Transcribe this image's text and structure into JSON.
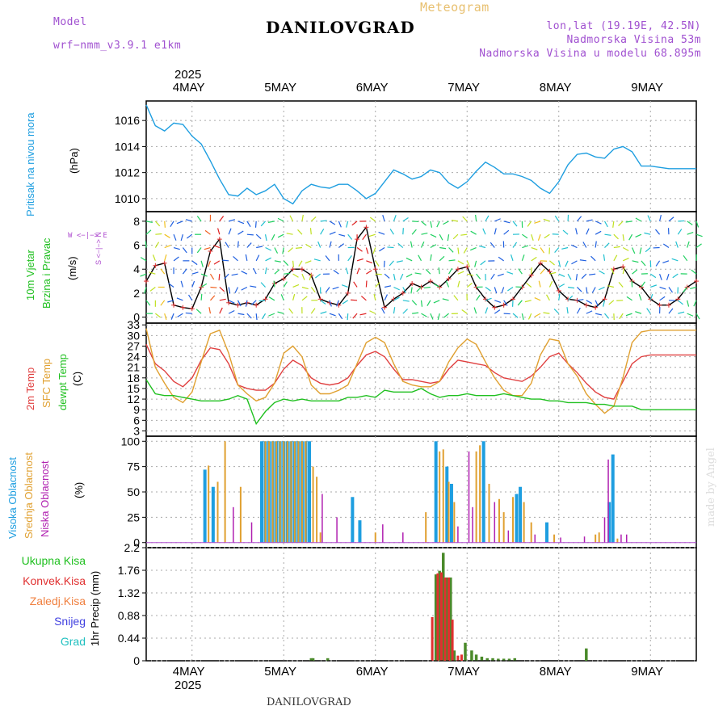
{
  "header": {
    "model_label": "Model",
    "model_name": "wrf−nmm_v3.9.1  e1km",
    "meteogram": "Meteogram",
    "station": "DANILOVGRAD",
    "lonlat": "lon,lat (19.19E, 42.5N)",
    "elevation": "Nadmorska Visina 53m",
    "model_elevation": "Nadmorska Visina u modelu 68.895m",
    "footer_station": "DANILOVGRAD",
    "watermark": "made by Angel"
  },
  "axis_dates": {
    "year": "2025",
    "days": [
      "4MAY",
      "5MAY",
      "6MAY",
      "7MAY",
      "8MAY",
      "9MAY"
    ]
  },
  "colors": {
    "pressure": "#1e9ee0",
    "wind_speed": "#000000",
    "wind_obs": "#e03030",
    "temp_2m": "#e04040",
    "temp_sfc": "#e0a030",
    "dewpt": "#20c020",
    "cloud_high": "#1e9ee0",
    "cloud_mid": "#e0a030",
    "cloud_low": "#b020b0",
    "precip_total": "#4a8a2a",
    "precip_conv": "#e03030",
    "grid": "#aaaaaa"
  },
  "chart_data": [
    {
      "type": "line",
      "panel": "pressure",
      "ylabel_name": "Pritisak na nivou mora",
      "ylabel_unit": "(hPa)",
      "ylim": [
        1009,
        1017.5
      ],
      "yticks": [
        "1016",
        "1014",
        "1012",
        "1010"
      ],
      "grid": true,
      "x_days": [
        0,
        0.1,
        0.2,
        0.3,
        0.4,
        0.5,
        0.6,
        0.7,
        0.8,
        0.9,
        1.0,
        1.1,
        1.2,
        1.3,
        1.4,
        1.5,
        1.6,
        1.7,
        1.8,
        1.9,
        2.0,
        2.1,
        2.2,
        2.3,
        2.4,
        2.5,
        2.6,
        2.7,
        2.8,
        2.9,
        3.0,
        3.1,
        3.2,
        3.3,
        3.4,
        3.5,
        3.6,
        3.7,
        3.8,
        3.9,
        4.0,
        4.1,
        4.2,
        4.3,
        4.4,
        4.5,
        4.6,
        4.7,
        4.8,
        4.9,
        5.0,
        5.1,
        5.2,
        5.3,
        5.4,
        5.5,
        5.6,
        5.7,
        5.8,
        5.9,
        6.0
      ],
      "series": [
        {
          "values": [
            1017.2,
            1015.6,
            1015.2,
            1015.8,
            1015.7,
            1014.8,
            1014.2,
            1012.9,
            1011.5,
            1010.3,
            1010.2,
            1010.8,
            1010.3,
            1010.6,
            1011.1,
            1010.0,
            1009.6,
            1010.6,
            1011.1,
            1010.9,
            1010.8,
            1011.1,
            1011.1,
            1010.6,
            1010.0,
            1010.4,
            1011.3,
            1012.2,
            1011.9,
            1011.5,
            1011.7,
            1012.2,
            1012.0,
            1011.2,
            1010.8,
            1011.3,
            1012.1,
            1012.8,
            1012.4,
            1011.9,
            1011.9,
            1011.7,
            1011.4,
            1010.8,
            1010.4,
            1011.3,
            1012.6,
            1013.4,
            1013.5,
            1013.2,
            1013.1,
            1013.8,
            1014.0,
            1013.6,
            1012.5,
            1012.5,
            1012.4,
            1012.3,
            1012.3,
            1012.3,
            1012.3
          ]
        }
      ]
    },
    {
      "type": "line",
      "panel": "wind",
      "ylabel_name_1": "10m Vjetar",
      "ylabel_name_2": "Brzina i Pravac",
      "ylabel_unit": "(m/s)",
      "compass": "W <−|−> E",
      "compass_v": "S <−|−> N",
      "ylim": [
        -0.5,
        8.8
      ],
      "yticks": [
        "8",
        "6",
        "4",
        "2",
        "0"
      ],
      "grid": true,
      "x_days": [
        0,
        0.1,
        0.2,
        0.3,
        0.4,
        0.5,
        0.6,
        0.7,
        0.8,
        0.9,
        1.0,
        1.1,
        1.2,
        1.3,
        1.4,
        1.5,
        1.6,
        1.7,
        1.8,
        1.9,
        2.0,
        2.1,
        2.2,
        2.3,
        2.4,
        2.5,
        2.6,
        2.7,
        2.8,
        2.9,
        3.0,
        3.1,
        3.2,
        3.3,
        3.4,
        3.5,
        3.6,
        3.7,
        3.8,
        3.9,
        4.0,
        4.1,
        4.2,
        4.3,
        4.4,
        4.5,
        4.6,
        4.7,
        4.8,
        4.9,
        5.0,
        5.1,
        5.2,
        5.3,
        5.4,
        5.5,
        5.6,
        5.7,
        5.8,
        5.9,
        6.0
      ],
      "series": [
        {
          "values": [
            3.0,
            4.3,
            4.5,
            1.0,
            0.8,
            0.7,
            2.5,
            5.5,
            6.5,
            1.2,
            1.0,
            1.2,
            1.0,
            1.5,
            2.8,
            3.2,
            4.0,
            4.0,
            3.5,
            1.5,
            1.2,
            1.0,
            2.0,
            6.5,
            7.5,
            4.0,
            0.8,
            1.5,
            2.0,
            2.8,
            2.5,
            3.0,
            2.5,
            3.2,
            4.0,
            4.2,
            2.5,
            1.5,
            0.8,
            1.0,
            1.5,
            2.5,
            3.5,
            4.5,
            3.8,
            2.2,
            1.5,
            1.4,
            1.0,
            0.8,
            1.5,
            4.0,
            4.2,
            3.0,
            2.5,
            1.5,
            1.0,
            1.0,
            1.5,
            2.5,
            3.0
          ]
        }
      ]
    },
    {
      "type": "line",
      "panel": "temperature",
      "ylabel_names": [
        "2m Temp",
        "SFC Temp",
        "dewpt Temp"
      ],
      "ylabel_unit": "(C)",
      "ylim": [
        1.5,
        33.5
      ],
      "yticks": [
        "33",
        "30",
        "27",
        "24",
        "21",
        "18",
        "15",
        "12",
        "9",
        "6",
        "3"
      ],
      "grid": true,
      "x_days": [
        0,
        0.1,
        0.2,
        0.3,
        0.4,
        0.5,
        0.6,
        0.7,
        0.8,
        0.9,
        1.0,
        1.1,
        1.2,
        1.3,
        1.4,
        1.5,
        1.6,
        1.7,
        1.8,
        1.9,
        2.0,
        2.1,
        2.2,
        2.3,
        2.4,
        2.5,
        2.6,
        2.7,
        2.8,
        2.9,
        3.0,
        3.1,
        3.2,
        3.3,
        3.4,
        3.5,
        3.6,
        3.7,
        3.8,
        3.9,
        4.0,
        4.1,
        4.2,
        4.3,
        4.4,
        4.5,
        4.6,
        4.7,
        4.8,
        4.9,
        5.0,
        5.1,
        5.2,
        5.3,
        5.4,
        5.5,
        5.6,
        5.7,
        5.8,
        5.9,
        6.0
      ],
      "series": [
        {
          "name": "2m Temp",
          "values": [
            27.5,
            22.0,
            20.0,
            17.0,
            15.5,
            18.0,
            23.0,
            26.5,
            26.0,
            22.0,
            16.0,
            15.0,
            14.5,
            14.5,
            16.5,
            20.5,
            23.0,
            21.5,
            18.0,
            16.5,
            16.0,
            16.5,
            18.0,
            21.5,
            24.5,
            25.5,
            24.0,
            20.5,
            17.5,
            17.5,
            17.0,
            16.5,
            17.0,
            20.5,
            23.0,
            22.5,
            22.0,
            21.5,
            19.5,
            18.0,
            17.5,
            17.0,
            18.5,
            21.0,
            24.0,
            25.0,
            22.0,
            19.5,
            16.5,
            14.0,
            12.5,
            12.0,
            17.0,
            22.0,
            24.0,
            24.5,
            24.5,
            24.5,
            24.5,
            24.5,
            24.5
          ]
        },
        {
          "name": "SFC Temp",
          "values": [
            32.0,
            21.0,
            16.5,
            12.5,
            11.0,
            14.0,
            22.5,
            30.5,
            31.5,
            25.0,
            16.0,
            13.5,
            11.5,
            12.5,
            16.5,
            25.0,
            27.0,
            24.0,
            16.0,
            13.5,
            13.5,
            14.5,
            16.0,
            22.0,
            28.0,
            29.5,
            28.0,
            22.0,
            17.0,
            16.0,
            15.5,
            15.5,
            17.0,
            22.5,
            26.5,
            29.0,
            27.5,
            22.5,
            18.0,
            14.5,
            13.0,
            13.0,
            16.5,
            24.5,
            29.0,
            28.5,
            22.0,
            18.5,
            13.5,
            10.5,
            8.0,
            10.0,
            18.0,
            28.0,
            31.0,
            31.5,
            31.5,
            31.5,
            31.5,
            31.5,
            31.5
          ]
        },
        {
          "name": "dewpt Temp",
          "values": [
            17.5,
            13.5,
            13.0,
            13.0,
            12.5,
            12.0,
            11.5,
            11.5,
            11.5,
            12.0,
            13.0,
            12.0,
            5.0,
            8.5,
            11.0,
            12.0,
            11.5,
            12.0,
            11.5,
            11.5,
            11.5,
            11.5,
            12.5,
            12.5,
            13.0,
            12.5,
            14.5,
            14.0,
            14.0,
            14.0,
            15.0,
            13.5,
            12.5,
            13.0,
            13.0,
            13.5,
            13.0,
            13.0,
            13.0,
            13.5,
            13.0,
            12.5,
            12.0,
            12.0,
            11.5,
            11.5,
            11.0,
            11.0,
            11.0,
            10.5,
            10.5,
            10.0,
            10.0,
            10.0,
            9.0,
            9.0,
            9.0,
            9.0,
            9.0,
            9.0,
            9.0
          ]
        }
      ]
    },
    {
      "type": "bar",
      "panel": "clouds",
      "ylabel_names": [
        "Visoka Oblacnost",
        "Srednja Oblacnost",
        "Niska Oblacnost"
      ],
      "ylabel_unit": "(%)",
      "ylim": [
        -5,
        105
      ],
      "yticks": [
        "100",
        "75",
        "50",
        "25",
        "0"
      ],
      "grid": true,
      "series": [
        {
          "name": "Visoka Oblacnost",
          "bars": [
            [
              0.64,
              72
            ],
            [
              0.73,
              55
            ],
            [
              1.26,
              100
            ],
            [
              1.3,
              100
            ],
            [
              1.34,
              100
            ],
            [
              1.38,
              100
            ],
            [
              1.42,
              100
            ],
            [
              1.46,
              100
            ],
            [
              1.5,
              100
            ],
            [
              1.54,
              100
            ],
            [
              1.58,
              100
            ],
            [
              1.62,
              100
            ],
            [
              1.66,
              100
            ],
            [
              1.7,
              100
            ],
            [
              1.74,
              100
            ],
            [
              1.78,
              100
            ],
            [
              2.25,
              45
            ],
            [
              2.33,
              22
            ],
            [
              3.16,
              100
            ],
            [
              3.28,
              75
            ],
            [
              3.33,
              58
            ],
            [
              3.68,
              100
            ],
            [
              4.04,
              48
            ],
            [
              4.08,
              55
            ],
            [
              4.37,
              20
            ],
            [
              5.05,
              40
            ],
            [
              5.09,
              87
            ]
          ]
        },
        {
          "name": "Srednja Oblacnost",
          "bars": [
            [
              0.68,
              76
            ],
            [
              0.78,
              60
            ],
            [
              0.86,
              100
            ],
            [
              1.03,
              55
            ],
            [
              1.3,
              100
            ],
            [
              1.34,
              100
            ],
            [
              1.38,
              100
            ],
            [
              1.42,
              100
            ],
            [
              1.46,
              100
            ],
            [
              1.5,
              100
            ],
            [
              1.54,
              100
            ],
            [
              1.58,
              100
            ],
            [
              1.62,
              100
            ],
            [
              1.66,
              100
            ],
            [
              1.7,
              100
            ],
            [
              1.74,
              100
            ],
            [
              1.82,
              75
            ],
            [
              1.86,
              65
            ],
            [
              1.9,
              10
            ],
            [
              2.5,
              10
            ],
            [
              3.05,
              30
            ],
            [
              3.2,
              90
            ],
            [
              3.24,
              92
            ],
            [
              3.3,
              60
            ],
            [
              3.36,
              40
            ],
            [
              3.6,
              90
            ],
            [
              3.64,
              96
            ],
            [
              3.74,
              58
            ],
            [
              3.85,
              43
            ],
            [
              3.9,
              30
            ],
            [
              4.0,
              45
            ],
            [
              4.12,
              40
            ],
            [
              4.2,
              20
            ],
            [
              4.45,
              8
            ],
            [
              4.9,
              8
            ],
            [
              4.94,
              10
            ],
            [
              5.14,
              4
            ]
          ]
        },
        {
          "name": "Niska Oblacnost",
          "bars": [
            [
              0.95,
              35
            ],
            [
              1.15,
              20
            ],
            [
              1.92,
              48
            ],
            [
              2.08,
              25
            ],
            [
              2.58,
              18
            ],
            [
              2.8,
              10
            ],
            [
              3.4,
              16
            ],
            [
              3.52,
              90
            ],
            [
              3.56,
              35
            ],
            [
              3.8,
              40
            ],
            [
              3.95,
              12
            ],
            [
              4.24,
              8
            ],
            [
              4.52,
              5
            ],
            [
              4.78,
              6
            ],
            [
              5.0,
              25
            ],
            [
              5.04,
              82
            ],
            [
              5.18,
              8
            ],
            [
              5.24,
              8
            ]
          ]
        }
      ]
    },
    {
      "type": "bar",
      "panel": "precipitation",
      "ylabel_names": [
        "Ukupna Kisa",
        "Konvek.Kisa",
        "Zaledj.Kisa",
        "Snijeg",
        "Grad"
      ],
      "ylabel_unit": "1hr Precip (mm)",
      "ylim": [
        0,
        2.2
      ],
      "yticks": [
        "2.2",
        "1.76",
        "1.32",
        "0.88",
        "0.44",
        "0"
      ],
      "grid": true,
      "series": [
        {
          "name": "Ukupna Kisa",
          "bars": [
            [
              1.8,
              0.05
            ],
            [
              1.82,
              0.05
            ],
            [
              1.98,
              0.05
            ],
            [
              3.16,
              1.68
            ],
            [
              3.2,
              1.75
            ],
            [
              3.24,
              2.1
            ],
            [
              3.28,
              1.62
            ],
            [
              3.32,
              1.62
            ],
            [
              3.36,
              0.2
            ],
            [
              3.48,
              0.35
            ],
            [
              3.55,
              0.2
            ],
            [
              3.6,
              0.12
            ],
            [
              3.66,
              0.08
            ],
            [
              3.72,
              0.05
            ],
            [
              3.78,
              0.05
            ],
            [
              3.84,
              0.04
            ],
            [
              3.9,
              0.04
            ],
            [
              3.96,
              0.04
            ],
            [
              4.02,
              0.05
            ],
            [
              4.8,
              0.24
            ]
          ]
        },
        {
          "name": "Konvek.Kisa",
          "bars": [
            [
              3.12,
              0.85
            ],
            [
              3.18,
              1.7
            ],
            [
              3.22,
              1.72
            ],
            [
              3.26,
              1.62
            ],
            [
              3.3,
              1.62
            ],
            [
              3.34,
              0.8
            ],
            [
              3.4,
              0.1
            ],
            [
              3.44,
              0.12
            ]
          ]
        }
      ]
    }
  ]
}
